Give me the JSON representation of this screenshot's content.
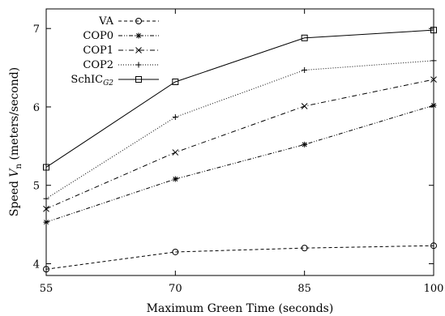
{
  "chart_data": {
    "type": "line",
    "title": "",
    "xlabel": "Maximum Green Time (seconds)",
    "ylabel_prefix": "Speed ",
    "ylabel_var": "V",
    "ylabel_sub": "n",
    "ylabel_suffix": " (meters/second)",
    "x": [
      55,
      70,
      85,
      100
    ],
    "x_tick_labels": [
      "55",
      "70",
      "85",
      "100"
    ],
    "xlim": [
      55,
      100
    ],
    "ylim": [
      3.85,
      7.25
    ],
    "y_ticks": [
      4,
      5,
      6,
      7
    ],
    "y_tick_labels": [
      "4",
      "5",
      "6",
      "7"
    ],
    "grid": false,
    "legend_position": "top-left",
    "series": [
      {
        "name": "VA",
        "name_base": "VA",
        "name_sub": "",
        "marker": "circle",
        "dash": "4,3",
        "values": [
          3.93,
          4.15,
          4.2,
          4.23
        ]
      },
      {
        "name": "COP0",
        "name_base": "COP0",
        "name_sub": "",
        "marker": "asterisk",
        "dash": "5,2,1,2,1,2",
        "values": [
          4.53,
          5.08,
          5.52,
          6.02
        ]
      },
      {
        "name": "COP1",
        "name_base": "COP1",
        "name_sub": "",
        "marker": "x",
        "dash": "6,3,1,3",
        "values": [
          4.7,
          5.42,
          6.01,
          6.35
        ]
      },
      {
        "name": "COP2",
        "name_base": "COP2",
        "name_sub": "",
        "marker": "plus",
        "dash": "1,2",
        "values": [
          4.83,
          5.87,
          6.47,
          6.59
        ]
      },
      {
        "name": "SchIC_G2",
        "name_base": "SchIC",
        "name_sub": "G2",
        "marker": "square",
        "dash": "",
        "values": [
          5.23,
          6.32,
          6.88,
          6.98
        ]
      }
    ]
  }
}
